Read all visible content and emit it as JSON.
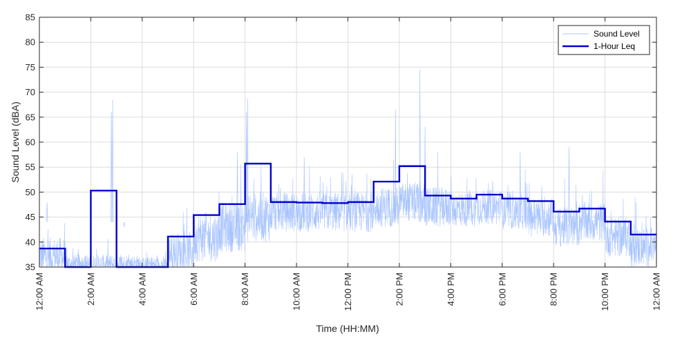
{
  "chart_data": {
    "type": "line",
    "xlabel": "Time (HH:MM)",
    "ylabel": "Sound Level (dBA)",
    "xlim": [
      0,
      24
    ],
    "ylim": [
      35,
      85
    ],
    "grid": true,
    "legend_position": "top-right",
    "x_ticks": [
      0,
      2,
      4,
      6,
      8,
      10,
      12,
      14,
      16,
      18,
      20,
      22,
      24
    ],
    "x_tick_labels": [
      "12:00 AM",
      "2:00 AM",
      "4:00 AM",
      "6:00 AM",
      "8:00 AM",
      "10:00 AM",
      "12:00 PM",
      "2:00 PM",
      "4:00 PM",
      "6:00 PM",
      "8:00 PM",
      "10:00 PM",
      "12:00 AM"
    ],
    "y_ticks": [
      35,
      40,
      45,
      50,
      55,
      60,
      65,
      70,
      75,
      80,
      85
    ],
    "series": [
      {
        "name": "Sound Level",
        "color": "#a8c4ff",
        "style": "thin-line",
        "hourly_profile": [
          {
            "hour": 0,
            "mean": 37,
            "spread": 4
          },
          {
            "hour": 1,
            "mean": 35.5,
            "spread": 2
          },
          {
            "hour": 2,
            "mean": 35.5,
            "spread": 2
          },
          {
            "hour": 3,
            "mean": 35.5,
            "spread": 2
          },
          {
            "hour": 4,
            "mean": 35.5,
            "spread": 1.5
          },
          {
            "hour": 5,
            "mean": 38,
            "spread": 4
          },
          {
            "hour": 6,
            "mean": 41,
            "spread": 5
          },
          {
            "hour": 7,
            "mean": 43,
            "spread": 5
          },
          {
            "hour": 8,
            "mean": 45,
            "spread": 5
          },
          {
            "hour": 9,
            "mean": 46,
            "spread": 4
          },
          {
            "hour": 10,
            "mean": 46,
            "spread": 4
          },
          {
            "hour": 11,
            "mean": 46,
            "spread": 4
          },
          {
            "hour": 12,
            "mean": 46,
            "spread": 4
          },
          {
            "hour": 13,
            "mean": 47,
            "spread": 4
          },
          {
            "hour": 14,
            "mean": 48,
            "spread": 4
          },
          {
            "hour": 15,
            "mean": 47,
            "spread": 4
          },
          {
            "hour": 16,
            "mean": 46.5,
            "spread": 3.5
          },
          {
            "hour": 17,
            "mean": 47,
            "spread": 3.5
          },
          {
            "hour": 18,
            "mean": 46,
            "spread": 3.5
          },
          {
            "hour": 19,
            "mean": 45,
            "spread": 4
          },
          {
            "hour": 20,
            "mean": 43,
            "spread": 4
          },
          {
            "hour": 21,
            "mean": 44,
            "spread": 4
          },
          {
            "hour": 22,
            "mean": 41,
            "spread": 4
          },
          {
            "hour": 23,
            "mean": 39,
            "spread": 4
          }
        ],
        "spikes": [
          {
            "x": 2.85,
            "y": 68.5
          },
          {
            "x": 2.8,
            "y": 66
          },
          {
            "x": 8.1,
            "y": 68.7
          },
          {
            "x": 8.05,
            "y": 66
          },
          {
            "x": 7.7,
            "y": 58
          },
          {
            "x": 13.85,
            "y": 66.5
          },
          {
            "x": 14.8,
            "y": 74.5
          },
          {
            "x": 15.0,
            "y": 63
          },
          {
            "x": 18.7,
            "y": 58
          },
          {
            "x": 20.6,
            "y": 59
          },
          {
            "x": 10.3,
            "y": 57
          },
          {
            "x": 0.3,
            "y": 48
          },
          {
            "x": 1.4,
            "y": 44
          },
          {
            "x": 3.3,
            "y": 43
          }
        ]
      },
      {
        "name": "1-Hour Leq",
        "color": "#0000cc",
        "style": "step",
        "step_x": [
          0,
          1,
          2,
          3,
          4,
          5,
          6,
          7,
          8,
          9,
          10,
          11,
          12,
          13,
          14,
          15,
          16,
          17,
          18,
          19,
          20,
          21,
          22,
          23,
          24
        ],
        "values": [
          38.7,
          35,
          50.3,
          35,
          35,
          41.1,
          45.4,
          47.6,
          55.7,
          48.0,
          47.9,
          47.8,
          48.0,
          52.1,
          55.2,
          49.3,
          48.7,
          49.5,
          48.7,
          48.2,
          46.1,
          46.7,
          44.1,
          41.5
        ]
      }
    ]
  }
}
